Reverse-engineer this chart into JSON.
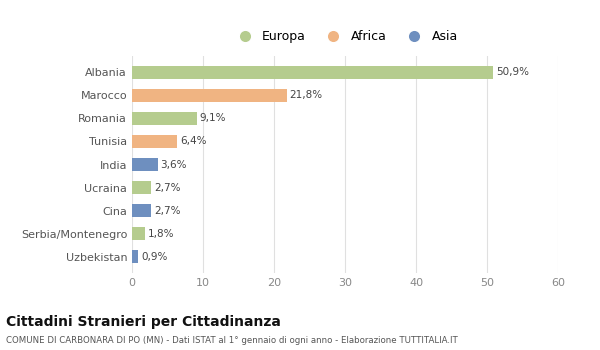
{
  "categories": [
    "Albania",
    "Marocco",
    "Romania",
    "Tunisia",
    "India",
    "Ucraina",
    "Cina",
    "Serbia/Montenegro",
    "Uzbekistan"
  ],
  "values": [
    50.9,
    21.8,
    9.1,
    6.4,
    3.6,
    2.7,
    2.7,
    1.8,
    0.9
  ],
  "labels": [
    "50,9%",
    "21,8%",
    "9,1%",
    "6,4%",
    "3,6%",
    "2,7%",
    "2,7%",
    "1,8%",
    "0,9%"
  ],
  "colors": [
    "#b5cc8e",
    "#f0b482",
    "#b5cc8e",
    "#f0b482",
    "#6e8fbf",
    "#b5cc8e",
    "#6e8fbf",
    "#b5cc8e",
    "#6e8fbf"
  ],
  "legend": [
    {
      "label": "Europa",
      "color": "#b5cc8e"
    },
    {
      "label": "Africa",
      "color": "#f0b482"
    },
    {
      "label": "Asia",
      "color": "#6e8fbf"
    }
  ],
  "xlim": [
    0,
    60
  ],
  "xticks": [
    0,
    10,
    20,
    30,
    40,
    50,
    60
  ],
  "title": "Cittadini Stranieri per Cittadinanza",
  "subtitle": "COMUNE DI CARBONARA DI PO (MN) - Dati ISTAT al 1° gennaio di ogni anno - Elaborazione TUTTITALIA.IT",
  "background_color": "#ffffff",
  "grid_color": "#e0e0e0"
}
